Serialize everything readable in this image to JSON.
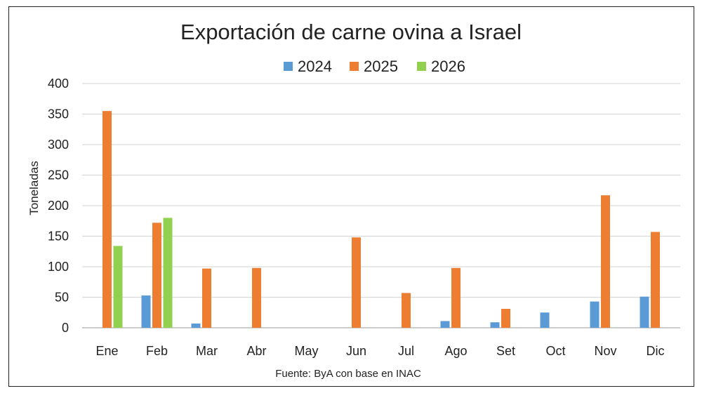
{
  "chart_data": {
    "type": "bar",
    "title": "Exportación de carne ovina a Israel",
    "xlabel": "",
    "ylabel": "Toneladas",
    "ylim": [
      0,
      400
    ],
    "yticks": [
      0,
      50,
      100,
      150,
      200,
      250,
      300,
      350,
      400
    ],
    "grid": true,
    "legend_position": "top-center",
    "categories": [
      "Ene",
      "Feb",
      "Mar",
      "Abr",
      "May",
      "Jun",
      "Jul",
      "Ago",
      "Set",
      "Oct",
      "Nov",
      "Dic"
    ],
    "series": [
      {
        "name": "2024",
        "color": "#5B9BD5",
        "values": [
          null,
          53,
          7,
          null,
          null,
          null,
          null,
          11,
          9,
          25,
          43,
          51
        ]
      },
      {
        "name": "2025",
        "color": "#ED7D31",
        "values": [
          355,
          172,
          97,
          98,
          null,
          148,
          57,
          98,
          31,
          null,
          217,
          157
        ]
      },
      {
        "name": "2026",
        "color": "#92D050",
        "values": [
          134,
          180,
          null,
          null,
          null,
          null,
          null,
          null,
          null,
          null,
          null,
          null
        ]
      }
    ],
    "source_note": "Fuente: ByA con base en INAC"
  }
}
